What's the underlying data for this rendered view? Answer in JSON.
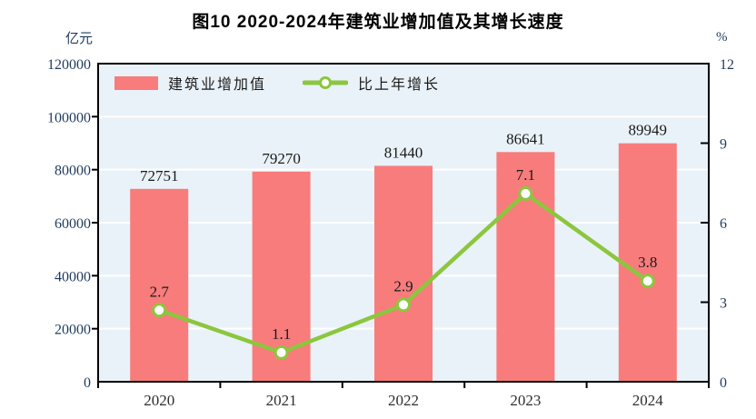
{
  "title": "图10  2020-2024年建筑业增加值及其增长速度",
  "left_axis_unit": "亿元",
  "right_axis_unit": "%",
  "legend": {
    "bar_label": "建筑业增加值",
    "line_label": "比上年增长"
  },
  "colors": {
    "bar": "#f87c7c",
    "line": "#8cc63e",
    "marker_fill": "#ffffff",
    "plot_bg": "#e9f2f8",
    "grid": "#ffffff",
    "frame": "#000000",
    "axis_number_text": "#1f3a5f",
    "year_text": "#2e2e2e",
    "data_label_text": "#1a1a1a"
  },
  "chart_data": {
    "type": "bar",
    "title": "图10  2020-2024年建筑业增加值及其增长速度",
    "categories": [
      "2020",
      "2021",
      "2022",
      "2023",
      "2024"
    ],
    "series": [
      {
        "name": "建筑业增加值",
        "type": "bar",
        "axis": "left",
        "values": [
          72751,
          79270,
          81440,
          86641,
          89949
        ],
        "labels": [
          "72751",
          "79270",
          "81440",
          "86641",
          "89949"
        ]
      },
      {
        "name": "比上年增长",
        "type": "line",
        "axis": "right",
        "values": [
          2.7,
          1.1,
          2.9,
          7.1,
          3.8
        ],
        "labels": [
          "2.7",
          "1.1",
          "2.9",
          "7.1",
          "3.8"
        ]
      }
    ],
    "left_axis": {
      "unit": "亿元",
      "min": 0,
      "max": 120000,
      "step": 20000,
      "ticks": [
        "0",
        "20000",
        "40000",
        "60000",
        "80000",
        "100000",
        "120000"
      ]
    },
    "right_axis": {
      "unit": "%",
      "min": 0,
      "max": 12,
      "step": 3,
      "ticks": [
        "0",
        "3",
        "6",
        "9",
        "12"
      ]
    },
    "grid": true,
    "legend_position": "top-left-inside"
  }
}
